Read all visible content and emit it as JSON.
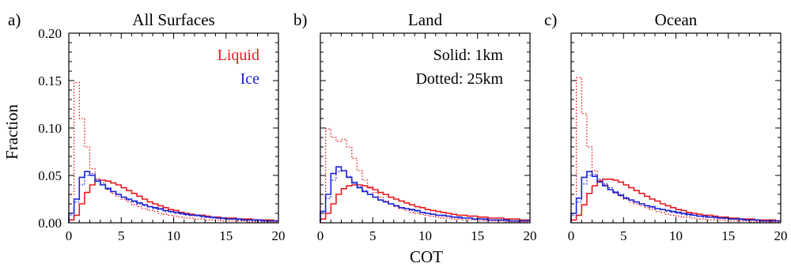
{
  "figure": {
    "ylabel": "Fraction",
    "xlabel": "COT",
    "legend": {
      "liquid": "Liquid",
      "ice": "Ice",
      "solid_note": "Solid: 1km",
      "dotted_note": "Dotted: 25km"
    },
    "colors": {
      "liquid": "#e8191e",
      "ice": "#1a22d8",
      "axis": "#000000"
    }
  },
  "chart_data": [
    {
      "type": "histogram-step",
      "panel_letter": "a)",
      "title": "All Surfaces",
      "xlim": [
        0,
        20
      ],
      "ylim": [
        0,
        0.2
      ],
      "x_ticks": [
        "0",
        "5",
        "10",
        "15",
        "20"
      ],
      "y_ticks": [
        "0.00",
        "0.05",
        "0.10",
        "0.15",
        "0.20"
      ],
      "y_tick_values": [
        0,
        0.05,
        0.1,
        0.15,
        0.2
      ],
      "bin_width": 0.5,
      "series": [
        {
          "name": "Liquid",
          "resolution": "1km",
          "style": "solid",
          "values": [
            0.003,
            0.008,
            0.02,
            0.032,
            0.04,
            0.044,
            0.045,
            0.044,
            0.042,
            0.04,
            0.037,
            0.034,
            0.031,
            0.028,
            0.025,
            0.022,
            0.02,
            0.018,
            0.016,
            0.014,
            0.013,
            0.011,
            0.01,
            0.009,
            0.008,
            0.008,
            0.007,
            0.006,
            0.006,
            0.005,
            0.005,
            0.005,
            0.004,
            0.004,
            0.004,
            0.003,
            0.003,
            0.003,
            0.003,
            0.002
          ]
        },
        {
          "name": "Liquid",
          "resolution": "25km",
          "style": "dotted",
          "values": [
            0.03,
            0.148,
            0.11,
            0.08,
            0.057,
            0.046,
            0.04,
            0.035,
            0.031,
            0.028,
            0.025,
            0.022,
            0.019,
            0.017,
            0.015,
            0.013,
            0.012,
            0.01,
            0.009,
            0.008,
            0.007,
            0.006,
            0.005,
            0.005,
            0.004,
            0.004,
            0.003,
            0.003,
            0.003,
            0.002,
            0.002,
            0.002,
            0.002,
            0.002,
            0.001,
            0.001,
            0.001,
            0.001,
            0.001,
            0.001
          ]
        },
        {
          "name": "Ice",
          "resolution": "1km",
          "style": "solid",
          "values": [
            0.01,
            0.025,
            0.048,
            0.054,
            0.05,
            0.044,
            0.04,
            0.036,
            0.033,
            0.03,
            0.027,
            0.025,
            0.023,
            0.021,
            0.019,
            0.017,
            0.016,
            0.015,
            0.013,
            0.012,
            0.011,
            0.01,
            0.009,
            0.008,
            0.008,
            0.007,
            0.006,
            0.006,
            0.005,
            0.005,
            0.004,
            0.004,
            0.004,
            0.003,
            0.003,
            0.003,
            0.003,
            0.002,
            0.002,
            0.002
          ]
        },
        {
          "name": "Ice",
          "resolution": "25km",
          "style": "dotted",
          "values": [
            0.008,
            0.022,
            0.04,
            0.05,
            0.052,
            0.046,
            0.042,
            0.037,
            0.033,
            0.03,
            0.027,
            0.024,
            0.022,
            0.02,
            0.018,
            0.017,
            0.015,
            0.014,
            0.012,
            0.011,
            0.01,
            0.009,
            0.008,
            0.008,
            0.007,
            0.006,
            0.006,
            0.005,
            0.005,
            0.004,
            0.004,
            0.004,
            0.003,
            0.003,
            0.003,
            0.002,
            0.002,
            0.002,
            0.002,
            0.002
          ]
        }
      ]
    },
    {
      "type": "histogram-step",
      "panel_letter": "b)",
      "title": "Land",
      "xlim": [
        0,
        20
      ],
      "ylim": [
        0,
        0.2
      ],
      "x_ticks": [
        "0",
        "5",
        "10",
        "15",
        "20"
      ],
      "y_ticks": [
        "0.00",
        "0.05",
        "0.10",
        "0.15",
        "0.20"
      ],
      "y_tick_values": [
        0,
        0.05,
        0.1,
        0.15,
        0.2
      ],
      "bin_width": 0.5,
      "series": [
        {
          "name": "Liquid",
          "resolution": "1km",
          "style": "solid",
          "values": [
            0.004,
            0.01,
            0.02,
            0.03,
            0.036,
            0.039,
            0.04,
            0.04,
            0.039,
            0.037,
            0.035,
            0.032,
            0.03,
            0.027,
            0.025,
            0.023,
            0.021,
            0.019,
            0.017,
            0.016,
            0.014,
            0.013,
            0.012,
            0.011,
            0.01,
            0.009,
            0.008,
            0.008,
            0.007,
            0.007,
            0.006,
            0.006,
            0.005,
            0.005,
            0.005,
            0.004,
            0.004,
            0.004,
            0.003,
            0.003
          ]
        },
        {
          "name": "Liquid",
          "resolution": "25km",
          "style": "dotted",
          "values": [
            0.03,
            0.099,
            0.09,
            0.086,
            0.088,
            0.08,
            0.068,
            0.055,
            0.045,
            0.038,
            0.032,
            0.027,
            0.023,
            0.02,
            0.017,
            0.015,
            0.013,
            0.011,
            0.01,
            0.009,
            0.008,
            0.007,
            0.006,
            0.005,
            0.005,
            0.004,
            0.004,
            0.003,
            0.003,
            0.003,
            0.002,
            0.002,
            0.002,
            0.002,
            0.002,
            0.001,
            0.001,
            0.001,
            0.001,
            0.001
          ]
        },
        {
          "name": "Ice",
          "resolution": "1km",
          "style": "solid",
          "values": [
            0.012,
            0.03,
            0.052,
            0.059,
            0.055,
            0.048,
            0.042,
            0.037,
            0.033,
            0.03,
            0.027,
            0.024,
            0.022,
            0.02,
            0.018,
            0.016,
            0.015,
            0.014,
            0.013,
            0.011,
            0.01,
            0.009,
            0.008,
            0.008,
            0.007,
            0.006,
            0.006,
            0.005,
            0.005,
            0.004,
            0.004,
            0.004,
            0.003,
            0.003,
            0.003,
            0.003,
            0.002,
            0.002,
            0.002,
            0.002
          ]
        },
        {
          "name": "Ice",
          "resolution": "25km",
          "style": "dotted",
          "values": [
            0.01,
            0.026,
            0.045,
            0.054,
            0.055,
            0.049,
            0.043,
            0.038,
            0.034,
            0.03,
            0.027,
            0.024,
            0.022,
            0.02,
            0.018,
            0.016,
            0.015,
            0.013,
            0.012,
            0.011,
            0.01,
            0.009,
            0.008,
            0.007,
            0.007,
            0.006,
            0.005,
            0.005,
            0.005,
            0.004,
            0.004,
            0.003,
            0.003,
            0.003,
            0.003,
            0.002,
            0.002,
            0.002,
            0.002,
            0.002
          ]
        }
      ]
    },
    {
      "type": "histogram-step",
      "panel_letter": "c)",
      "title": "Ocean",
      "xlim": [
        0,
        20
      ],
      "ylim": [
        0,
        0.2
      ],
      "x_ticks": [
        "0",
        "5",
        "10",
        "15",
        "20"
      ],
      "y_ticks": [
        "0.00",
        "0.05",
        "0.10",
        "0.15",
        "0.20"
      ],
      "y_tick_values": [
        0,
        0.05,
        0.1,
        0.15,
        0.2
      ],
      "bin_width": 0.5,
      "series": [
        {
          "name": "Liquid",
          "resolution": "1km",
          "style": "solid",
          "values": [
            0.003,
            0.008,
            0.019,
            0.031,
            0.039,
            0.044,
            0.046,
            0.046,
            0.045,
            0.043,
            0.04,
            0.037,
            0.034,
            0.031,
            0.028,
            0.025,
            0.023,
            0.02,
            0.018,
            0.016,
            0.014,
            0.013,
            0.011,
            0.01,
            0.009,
            0.008,
            0.008,
            0.007,
            0.006,
            0.006,
            0.005,
            0.005,
            0.004,
            0.004,
            0.004,
            0.003,
            0.003,
            0.003,
            0.003,
            0.002
          ]
        },
        {
          "name": "Liquid",
          "resolution": "25km",
          "style": "dotted",
          "values": [
            0.03,
            0.153,
            0.115,
            0.08,
            0.055,
            0.045,
            0.04,
            0.035,
            0.031,
            0.028,
            0.025,
            0.022,
            0.02,
            0.018,
            0.016,
            0.014,
            0.012,
            0.011,
            0.009,
            0.008,
            0.007,
            0.006,
            0.006,
            0.005,
            0.004,
            0.004,
            0.003,
            0.003,
            0.003,
            0.002,
            0.002,
            0.002,
            0.002,
            0.002,
            0.001,
            0.001,
            0.001,
            0.001,
            0.001,
            0.001
          ]
        },
        {
          "name": "Ice",
          "resolution": "1km",
          "style": "solid",
          "values": [
            0.01,
            0.026,
            0.048,
            0.054,
            0.049,
            0.043,
            0.039,
            0.035,
            0.032,
            0.029,
            0.026,
            0.024,
            0.022,
            0.02,
            0.018,
            0.017,
            0.015,
            0.014,
            0.013,
            0.012,
            0.011,
            0.01,
            0.009,
            0.008,
            0.007,
            0.007,
            0.006,
            0.006,
            0.005,
            0.005,
            0.004,
            0.004,
            0.004,
            0.003,
            0.003,
            0.003,
            0.002,
            0.002,
            0.002,
            0.002
          ]
        },
        {
          "name": "Ice",
          "resolution": "25km",
          "style": "dotted",
          "values": [
            0.008,
            0.022,
            0.041,
            0.05,
            0.051,
            0.046,
            0.041,
            0.037,
            0.033,
            0.03,
            0.027,
            0.024,
            0.022,
            0.02,
            0.018,
            0.016,
            0.015,
            0.014,
            0.012,
            0.011,
            0.01,
            0.009,
            0.008,
            0.008,
            0.007,
            0.006,
            0.006,
            0.005,
            0.005,
            0.004,
            0.004,
            0.004,
            0.003,
            0.003,
            0.003,
            0.002,
            0.002,
            0.002,
            0.002,
            0.002
          ]
        }
      ]
    }
  ]
}
